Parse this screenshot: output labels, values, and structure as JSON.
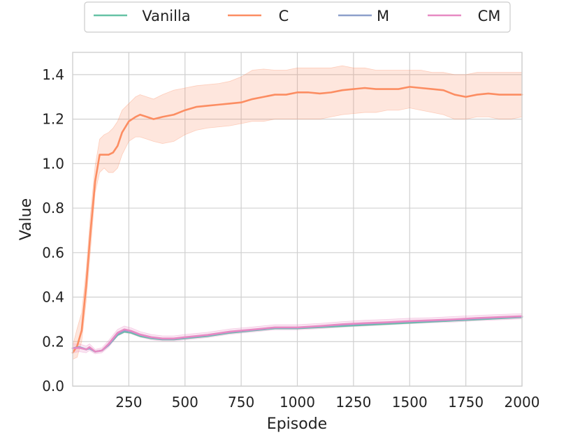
{
  "chart_data": {
    "type": "line",
    "xlabel": "Episode",
    "ylabel": "Value",
    "xlim": [
      0,
      2000
    ],
    "ylim": [
      0,
      1.5
    ],
    "x_ticks": [
      250,
      500,
      750,
      1000,
      1250,
      1500,
      1750,
      2000
    ],
    "x_tick_labels": [
      "250",
      "500",
      "750",
      "1000",
      "1250",
      "1500",
      "1750",
      "2000"
    ],
    "y_ticks": [
      0.0,
      0.2,
      0.4,
      0.6,
      0.8,
      1.0,
      1.2,
      1.4
    ],
    "y_tick_labels": [
      "0.0",
      "0.2",
      "0.4",
      "0.6",
      "0.8",
      "1.0",
      "1.2",
      "1.4"
    ],
    "grid": true,
    "legend_position": "top-center",
    "series": [
      {
        "name": "Vanilla",
        "color": "#66c2a5",
        "x": [
          0,
          30,
          60,
          75,
          100,
          130,
          160,
          200,
          230,
          260,
          300,
          350,
          400,
          450,
          500,
          600,
          700,
          800,
          900,
          1000,
          1100,
          1200,
          1300,
          1400,
          1500,
          1600,
          1700,
          1800,
          1900,
          2000
        ],
        "values": [
          0.17,
          0.175,
          0.165,
          0.17,
          0.155,
          0.16,
          0.185,
          0.23,
          0.245,
          0.24,
          0.225,
          0.215,
          0.21,
          0.21,
          0.215,
          0.225,
          0.24,
          0.25,
          0.26,
          0.26,
          0.265,
          0.27,
          0.275,
          0.28,
          0.285,
          0.29,
          0.295,
          0.3,
          0.305,
          0.31
        ]
      },
      {
        "name": "C",
        "color": "#fc8d62",
        "x": [
          0,
          20,
          40,
          60,
          80,
          100,
          120,
          140,
          160,
          180,
          200,
          220,
          250,
          280,
          300,
          330,
          360,
          400,
          450,
          500,
          550,
          600,
          650,
          700,
          750,
          800,
          850,
          900,
          950,
          1000,
          1050,
          1100,
          1150,
          1200,
          1250,
          1300,
          1350,
          1400,
          1450,
          1500,
          1550,
          1600,
          1650,
          1700,
          1750,
          1800,
          1850,
          1900,
          1950,
          2000
        ],
        "values": [
          0.15,
          0.18,
          0.25,
          0.45,
          0.7,
          0.92,
          1.04,
          1.04,
          1.04,
          1.05,
          1.08,
          1.14,
          1.19,
          1.21,
          1.22,
          1.21,
          1.2,
          1.21,
          1.22,
          1.24,
          1.255,
          1.26,
          1.265,
          1.27,
          1.275,
          1.29,
          1.3,
          1.31,
          1.31,
          1.32,
          1.32,
          1.315,
          1.32,
          1.33,
          1.335,
          1.34,
          1.335,
          1.335,
          1.335,
          1.345,
          1.34,
          1.335,
          1.33,
          1.31,
          1.3,
          1.31,
          1.315,
          1.31,
          1.31,
          1.31
        ],
        "lower": [
          0.12,
          0.13,
          0.2,
          0.38,
          0.62,
          0.87,
          0.96,
          0.98,
          0.96,
          0.96,
          0.98,
          1.04,
          1.1,
          1.12,
          1.12,
          1.11,
          1.1,
          1.09,
          1.1,
          1.13,
          1.15,
          1.16,
          1.165,
          1.17,
          1.18,
          1.19,
          1.19,
          1.2,
          1.2,
          1.2,
          1.2,
          1.2,
          1.21,
          1.22,
          1.225,
          1.23,
          1.23,
          1.24,
          1.24,
          1.25,
          1.24,
          1.23,
          1.22,
          1.2,
          1.2,
          1.21,
          1.21,
          1.2,
          1.2,
          1.21
        ],
        "upper": [
          0.18,
          0.26,
          0.33,
          0.52,
          0.78,
          0.99,
          1.11,
          1.13,
          1.14,
          1.16,
          1.19,
          1.24,
          1.27,
          1.3,
          1.31,
          1.3,
          1.29,
          1.31,
          1.33,
          1.34,
          1.35,
          1.355,
          1.36,
          1.37,
          1.39,
          1.42,
          1.425,
          1.42,
          1.42,
          1.43,
          1.43,
          1.43,
          1.43,
          1.44,
          1.43,
          1.43,
          1.42,
          1.42,
          1.42,
          1.42,
          1.42,
          1.41,
          1.41,
          1.4,
          1.4,
          1.41,
          1.41,
          1.41,
          1.41,
          1.41
        ]
      },
      {
        "name": "M",
        "color": "#8da0cb",
        "x": [
          0,
          30,
          60,
          75,
          100,
          130,
          160,
          200,
          230,
          260,
          300,
          350,
          400,
          450,
          500,
          600,
          700,
          800,
          900,
          1000,
          1100,
          1200,
          1300,
          1400,
          1500,
          1600,
          1700,
          1800,
          1900,
          2000
        ],
        "values": [
          0.17,
          0.175,
          0.165,
          0.17,
          0.155,
          0.16,
          0.185,
          0.235,
          0.25,
          0.245,
          0.23,
          0.218,
          0.212,
          0.212,
          0.218,
          0.228,
          0.243,
          0.252,
          0.262,
          0.262,
          0.268,
          0.275,
          0.28,
          0.285,
          0.29,
          0.293,
          0.298,
          0.303,
          0.308,
          0.312
        ]
      },
      {
        "name": "CM",
        "color": "#e78ac3",
        "x": [
          0,
          30,
          60,
          75,
          100,
          130,
          160,
          200,
          230,
          260,
          300,
          350,
          400,
          450,
          500,
          600,
          700,
          800,
          900,
          1000,
          1100,
          1200,
          1300,
          1400,
          1500,
          1600,
          1700,
          1800,
          1900,
          2000
        ],
        "values": [
          0.17,
          0.172,
          0.165,
          0.175,
          0.155,
          0.16,
          0.19,
          0.24,
          0.255,
          0.248,
          0.232,
          0.22,
          0.214,
          0.214,
          0.22,
          0.23,
          0.245,
          0.254,
          0.264,
          0.264,
          0.27,
          0.278,
          0.283,
          0.287,
          0.292,
          0.296,
          0.3,
          0.306,
          0.31,
          0.314
        ],
        "lower": [
          0.15,
          0.155,
          0.15,
          0.16,
          0.145,
          0.15,
          0.175,
          0.225,
          0.24,
          0.235,
          0.22,
          0.208,
          0.203,
          0.203,
          0.208,
          0.218,
          0.233,
          0.243,
          0.253,
          0.253,
          0.258,
          0.265,
          0.27,
          0.275,
          0.28,
          0.285,
          0.288,
          0.294,
          0.298,
          0.302
        ],
        "upper": [
          0.19,
          0.19,
          0.18,
          0.19,
          0.165,
          0.172,
          0.205,
          0.255,
          0.27,
          0.262,
          0.245,
          0.232,
          0.226,
          0.226,
          0.232,
          0.242,
          0.257,
          0.266,
          0.276,
          0.276,
          0.282,
          0.29,
          0.296,
          0.3,
          0.305,
          0.308,
          0.313,
          0.318,
          0.322,
          0.326
        ]
      }
    ]
  }
}
